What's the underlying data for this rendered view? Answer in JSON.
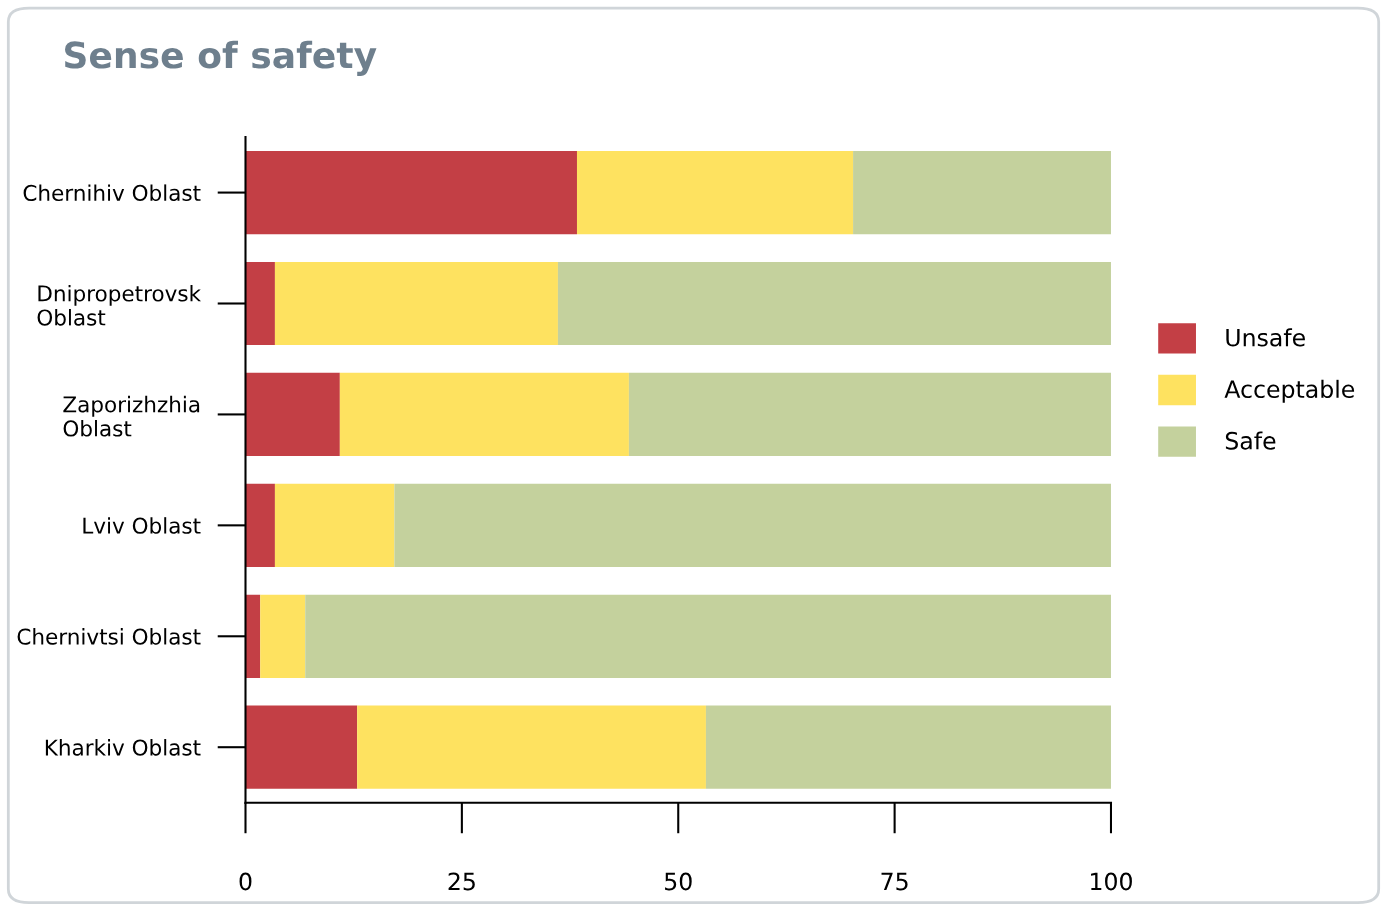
{
  "chart_data": {
    "type": "bar",
    "title": "Sense of safety",
    "orientation": "horizontal",
    "stacked": true,
    "categories": [
      "Chernihiv Oblast",
      "Dnipropetrovsk\nOblast",
      "Zaporizhzhia\nOblast",
      "Lviv Oblast",
      "Chernivtsi Oblast",
      "Kharkiv Oblast"
    ],
    "series": [
      {
        "name": "Unsafe",
        "color": "#c33f45",
        "values": [
          38.3,
          3.4,
          10.9,
          3.4,
          1.7,
          12.9
        ]
      },
      {
        "name": "Acceptable",
        "color": "#fee260",
        "values": [
          31.9,
          32.7,
          33.4,
          13.8,
          5.2,
          40.3
        ]
      },
      {
        "name": "Safe",
        "color": "#c4d19d",
        "values": [
          29.8,
          63.9,
          55.7,
          82.8,
          93.1,
          46.8
        ]
      }
    ],
    "xlim": [
      0,
      100
    ],
    "xticks": [
      0,
      25,
      50,
      75,
      100
    ],
    "grid": false,
    "legend": "right"
  }
}
